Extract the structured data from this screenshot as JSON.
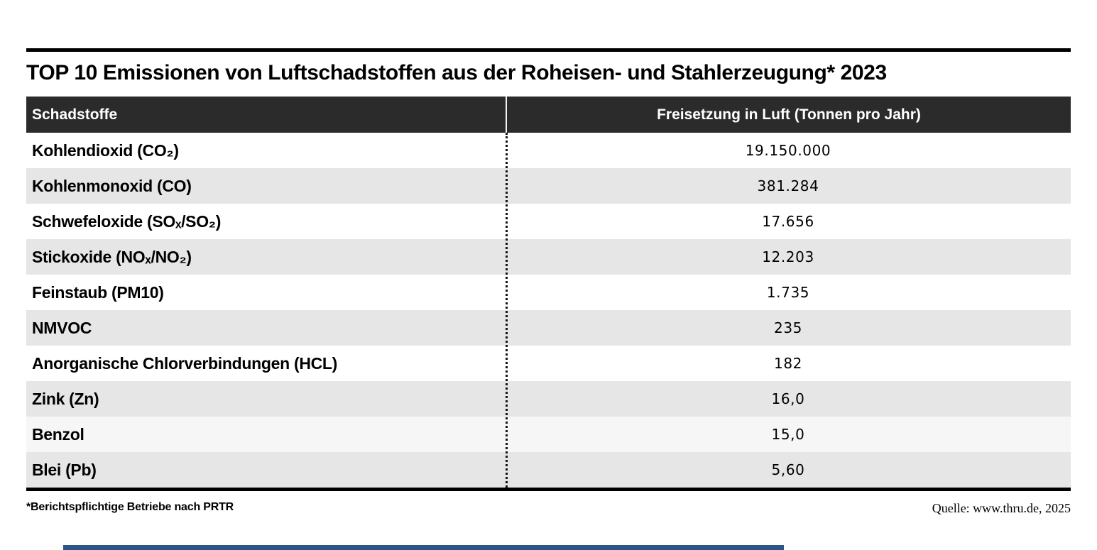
{
  "title": "TOP 10 Emissionen von Luftschadstoffen aus der Roheisen- und Stahlerzeugung* 2023",
  "table": {
    "header": {
      "col1": "Schadstoffe",
      "col2": "Freisetzung in Luft (Tonnen pro Jahr)"
    },
    "rows": [
      {
        "name": "Kohlendioxid (CO₂)",
        "value": "19.150.000",
        "bg": "#ffffff"
      },
      {
        "name": "Kohlenmonoxid (CO)",
        "value": "381.284",
        "bg": "#e6e6e6"
      },
      {
        "name": "Schwefeloxide (SOₓ/SO₂)",
        "value": "17.656",
        "bg": "#ffffff"
      },
      {
        "name": "Stickoxide (NOₓ/NO₂)",
        "value": "12.203",
        "bg": "#e6e6e6"
      },
      {
        "name": "Feinstaub (PM10)",
        "value": "1.735",
        "bg": "#ffffff"
      },
      {
        "name": "NMVOC",
        "value": "235",
        "bg": "#e6e6e6"
      },
      {
        "name": "Anorganische Chlorverbindungen (HCL)",
        "value": "182",
        "bg": "#ffffff"
      },
      {
        "name": "Zink (Zn)",
        "value": "16,0",
        "bg": "#e6e6e6"
      },
      {
        "name": "Benzol",
        "value": "15,0",
        "bg": "#f6f6f6"
      },
      {
        "name": "Blei (Pb)",
        "value": "5,60",
        "bg": "#e6e6e6"
      }
    ]
  },
  "footnote": "*Berichtspflichtige Betriebe nach PRTR",
  "source": "Quelle: www.thru.de, 2025",
  "colors": {
    "header_bg": "#2b2b2b",
    "header_text": "#ffffff",
    "row_gray": "#e6e6e6",
    "row_offwhite": "#f6f6f6",
    "rule": "#000000",
    "accent_bar": "#2b5687"
  },
  "chart_data": {
    "type": "table",
    "title": "TOP 10 Emissionen von Luftschadstoffen aus der Roheisen- und Stahlerzeugung* 2023",
    "columns": [
      "Schadstoffe",
      "Freisetzung in Luft (Tonnen pro Jahr)"
    ],
    "categories": [
      "Kohlendioxid (CO₂)",
      "Kohlenmonoxid (CO)",
      "Schwefeloxide (SOₓ/SO₂)",
      "Stickoxide (NOₓ/NO₂)",
      "Feinstaub (PM10)",
      "NMVOC",
      "Anorganische Chlorverbindungen (HCL)",
      "Zink (Zn)",
      "Benzol",
      "Blei (Pb)"
    ],
    "values": [
      19150000,
      381284,
      17656,
      12203,
      1735,
      235,
      182,
      16.0,
      15.0,
      5.6
    ],
    "values_display": [
      "19.150.000",
      "381.284",
      "17.656",
      "12.203",
      "1.735",
      "235",
      "182",
      "16,0",
      "15,0",
      "5,60"
    ],
    "unit": "Tonnen pro Jahr",
    "footnote": "*Berichtspflichtige Betriebe nach PRTR",
    "source": "Quelle: www.thru.de, 2025"
  }
}
